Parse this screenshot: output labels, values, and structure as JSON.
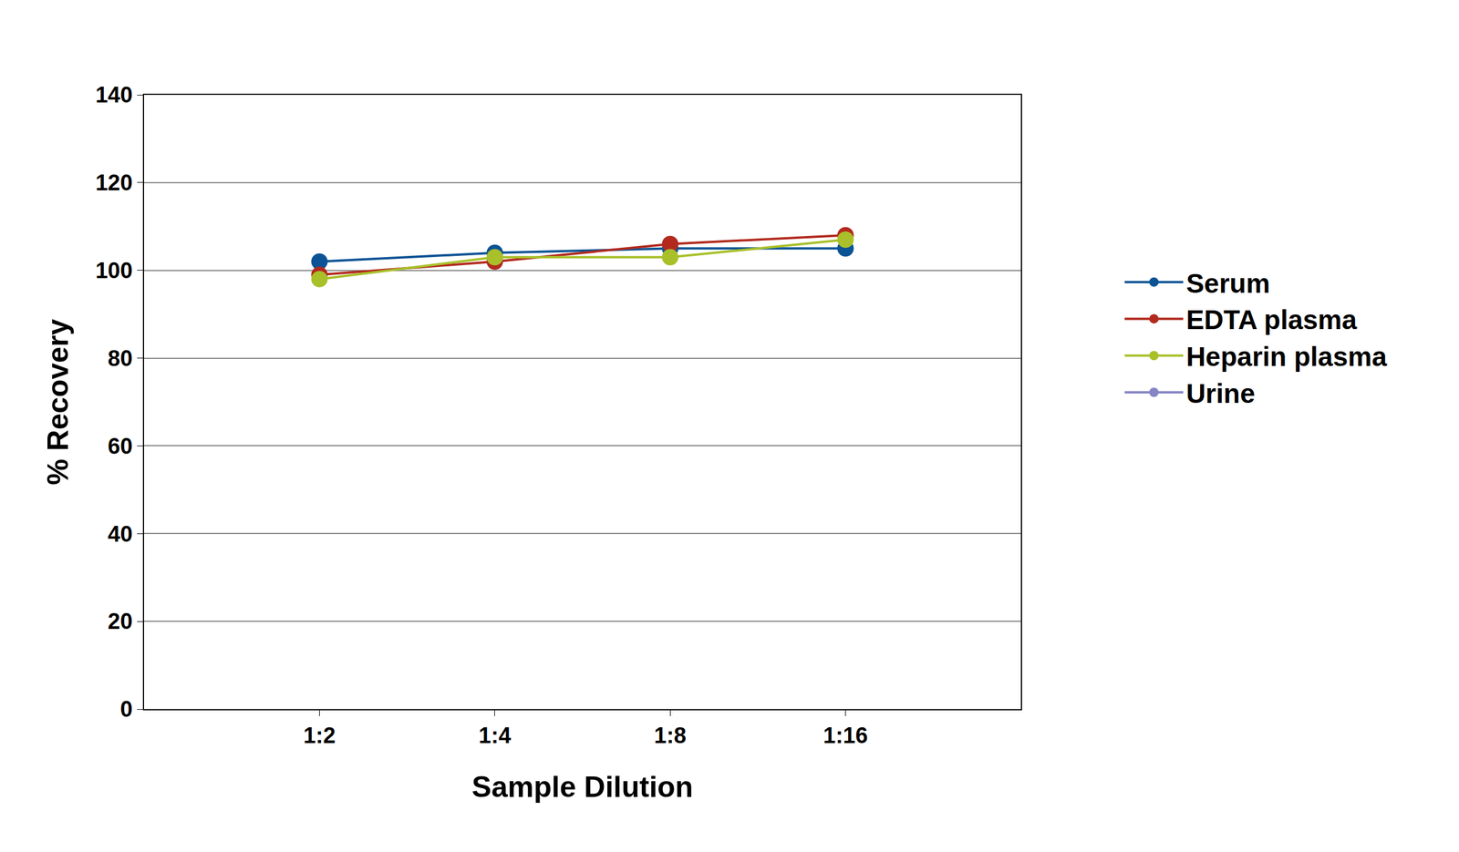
{
  "chart_data": {
    "type": "line",
    "x_label": "Sample Dilution",
    "y_label": "% Recovery",
    "categories": [
      "1:2",
      "1:4",
      "1:8",
      "1:16"
    ],
    "series": [
      {
        "name": "Serum",
        "color": "#0b5394",
        "values": [
          102,
          104,
          105,
          105
        ]
      },
      {
        "name": "EDTA plasma",
        "color": "#b22a1e",
        "values": [
          99,
          102,
          106,
          108
        ]
      },
      {
        "name": "Heparin plasma",
        "color": "#a9c02a",
        "values": [
          98,
          103,
          103,
          107
        ]
      },
      {
        "name": "Urine",
        "color": "#8585c6",
        "values": [
          null,
          null,
          null,
          null
        ]
      }
    ],
    "ylim": [
      0,
      140
    ],
    "yticks": [
      0,
      20,
      40,
      60,
      80,
      100,
      120,
      140
    ],
    "grid": true,
    "legend": "right",
    "marker": "circle",
    "line_style": "solid"
  }
}
